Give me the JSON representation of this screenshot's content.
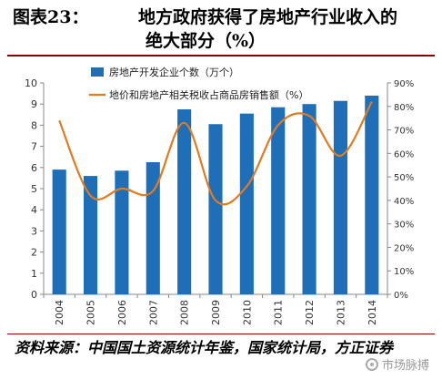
{
  "header": {
    "figure_number": "图表23：",
    "title_line1": "地方政府获得了房地产行业收入的",
    "title_line2": "绝大部分（%）"
  },
  "chart_data": {
    "type": "bar",
    "categories": [
      "2004",
      "2005",
      "2006",
      "2007",
      "2008",
      "2009",
      "2010",
      "2011",
      "2012",
      "2013",
      "2014"
    ],
    "series": [
      {
        "name": "房地产开发企业个数（万个）",
        "kind": "bar",
        "axis": "left",
        "values": [
          5.9,
          5.6,
          5.85,
          6.25,
          8.75,
          8.05,
          8.55,
          8.85,
          9.0,
          9.15,
          9.4
        ],
        "color": "#1f6fb8"
      },
      {
        "name": "地价和房地产相关税收占商品房销售额（%）",
        "kind": "line",
        "axis": "right",
        "values": [
          74,
          42,
          45,
          44,
          73,
          40,
          46,
          72,
          76,
          59,
          82
        ],
        "color": "#e07b1f"
      }
    ],
    "y_left": {
      "min": 0,
      "max": 10,
      "ticks": [
        "0",
        "1",
        "2",
        "3",
        "4",
        "5",
        "6",
        "7",
        "8",
        "9",
        "10"
      ]
    },
    "y_right": {
      "min": 0,
      "max": 90,
      "ticks": [
        "0%",
        "10%",
        "20%",
        "30%",
        "40%",
        "50%",
        "60%",
        "70%",
        "80%",
        "90%"
      ]
    },
    "legend_position": "top-left",
    "grid": false
  },
  "footer": {
    "source": "资料来源：中国国土资源统计年鉴，国家统计局，方正证券"
  },
  "watermark": {
    "text": "市场脉搏"
  }
}
